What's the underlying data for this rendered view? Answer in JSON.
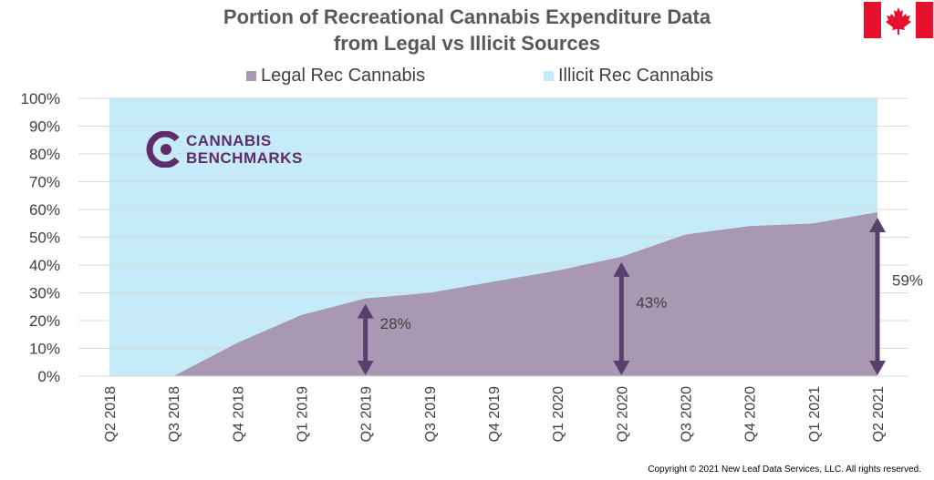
{
  "title_line1": "Portion of Recreational Cannabis Expenditure Data",
  "title_line2": "from Legal vs Illicit Sources",
  "legend": [
    {
      "label": "Legal Rec Cannabis",
      "color": "#a898b2"
    },
    {
      "label": "Illicit Rec Cannabis",
      "color": "#c5ebf8"
    }
  ],
  "logo": {
    "line1": "CANNABIS",
    "line2": "BENCHMARKS",
    "color": "#5e2c6b"
  },
  "flag": "canada-flag",
  "copyright": "Copyright © 2021 New Leaf Data Services, LLC. All rights reserved.",
  "chart_data": {
    "type": "area",
    "categories": [
      "Q2 2018",
      "Q3 2018",
      "Q4 2018",
      "Q1 2019",
      "Q2 2019",
      "Q3 2019",
      "Q4 2019",
      "Q1 2020",
      "Q2 2020",
      "Q3 2020",
      "Q4 2020",
      "Q1 2021",
      "Q2 2021"
    ],
    "series": [
      {
        "name": "Legal Rec Cannabis",
        "color": "#a898b2",
        "values": [
          0,
          0,
          12,
          22,
          28,
          30,
          34,
          38,
          43,
          51,
          54,
          55,
          59
        ]
      },
      {
        "name": "Illicit Rec Cannabis",
        "color": "#c5ebf8",
        "values": [
          100,
          100,
          88,
          78,
          72,
          70,
          66,
          62,
          57,
          49,
          46,
          45,
          41
        ]
      }
    ],
    "stacked": true,
    "ylim": [
      0,
      100
    ],
    "yticks": [
      "0%",
      "10%",
      "20%",
      "30%",
      "40%",
      "50%",
      "60%",
      "70%",
      "80%",
      "90%",
      "100%"
    ],
    "grid": true,
    "legend_position": "top",
    "annotations": [
      {
        "category": "Q2 2019",
        "value": 28,
        "label": "28%"
      },
      {
        "category": "Q2 2020",
        "value": 43,
        "label": "43%"
      },
      {
        "category": "Q2 2021",
        "value": 59,
        "label": "59%"
      }
    ],
    "arrow_color": "#57406e"
  }
}
